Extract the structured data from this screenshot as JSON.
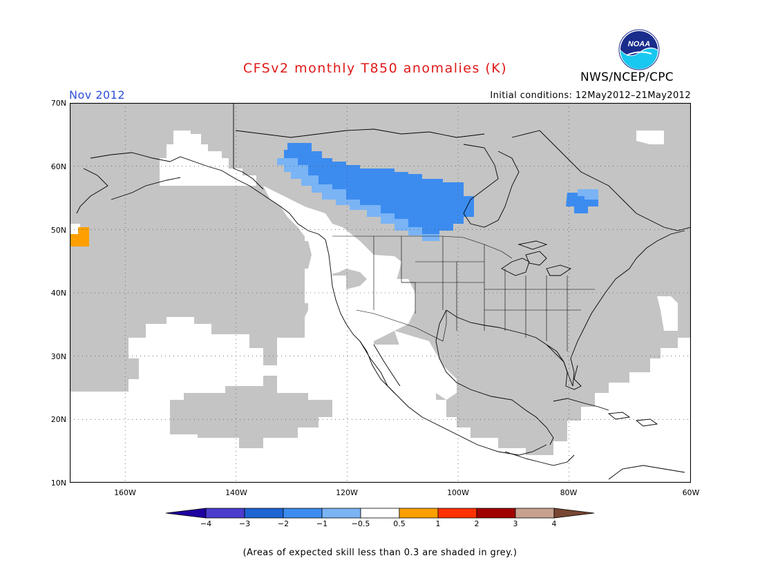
{
  "title": "CFSv2 monthly T850 anomalies (K)",
  "agency": "NWS/NCEP/CPC",
  "logo_text": "NOAA",
  "month": "Nov 2012",
  "initial_conditions": "Initial conditions: 12May2012–21May2012",
  "footnote": "(Areas of expected skill less than 0.3 are shaded in grey.)",
  "map": {
    "extent": {
      "lon": [
        -172,
        -60
      ],
      "lat": [
        10,
        70
      ]
    },
    "lat_labels": [
      "70N",
      "60N",
      "50N",
      "40N",
      "30N",
      "20N",
      "10N"
    ],
    "lon_labels": [
      "160W",
      "140W",
      "120W",
      "100W",
      "80W",
      "60W"
    ],
    "colors": {
      "skill_mask": "#c4c4c4",
      "land_ocean": "#ffffff",
      "neg_0_5_to_1": "#7ab4f5",
      "neg_1_to_2": "#3c8cf0",
      "pos_0_5_to_1": "#ffa000"
    }
  },
  "colorbar": {
    "labels": [
      "−4",
      "−3",
      "−2",
      "−1",
      "−0.5",
      "0.5",
      "1",
      "2",
      "3",
      "4"
    ],
    "colors": [
      "#1e00a0",
      "#4b3ccd",
      "#1e64d2",
      "#3c8cf0",
      "#7ab4f5",
      "#ffffff",
      "#ffa000",
      "#ff3200",
      "#a00000",
      "#c8a090",
      "#784632"
    ]
  }
}
